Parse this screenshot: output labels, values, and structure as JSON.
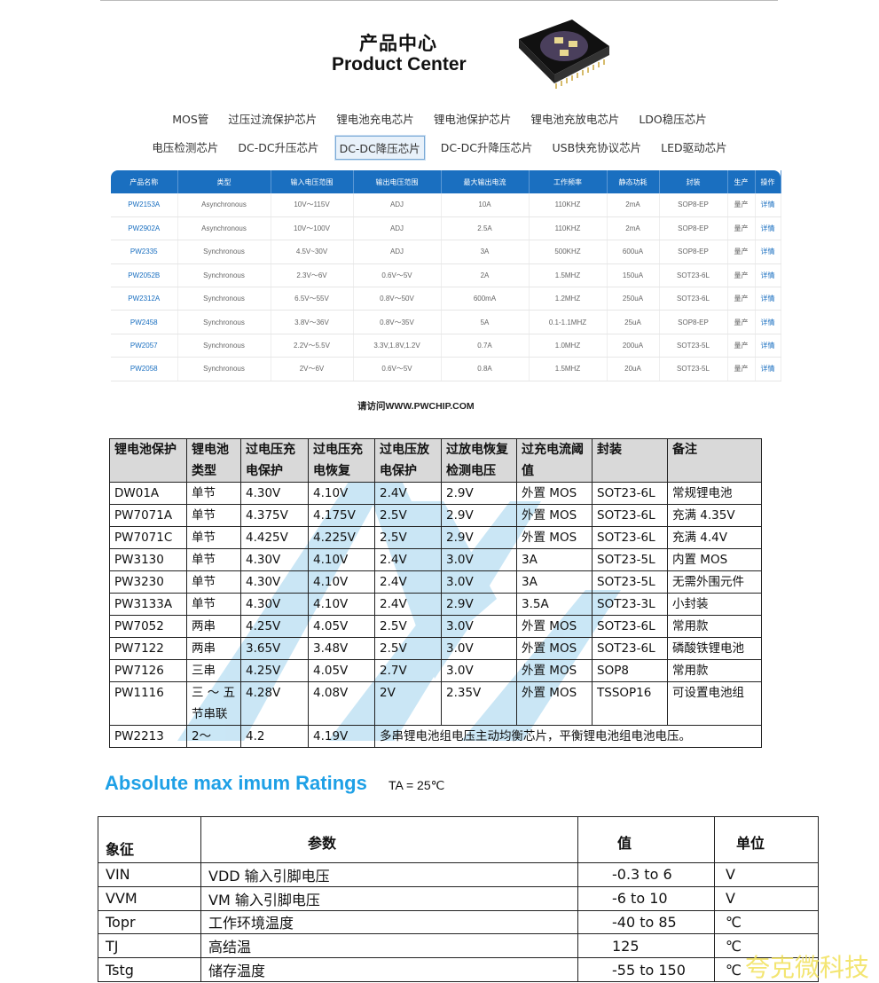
{
  "header": {
    "title_cn": "产品中心",
    "title_en": "Product Center"
  },
  "categories": {
    "row1": [
      "MOS管",
      "过压过流保护芯片",
      "锂电池充电芯片",
      "锂电池保护芯片",
      "锂电池充放电芯片",
      "LDO稳压芯片"
    ],
    "row2": [
      "电压检测芯片",
      "DC-DC升压芯片",
      "DC-DC降压芯片",
      "DC-DC升降压芯片",
      "USB快充协议芯片",
      "LED驱动芯片"
    ],
    "selected": "DC-DC降压芯片"
  },
  "product_table": {
    "headers": [
      "产品名称",
      "类型",
      "输入电压范围",
      "输出电压范围",
      "最大输出电流",
      "工作频率",
      "静态功耗",
      "封装",
      "生产",
      "操作"
    ],
    "rows": [
      [
        "PW2153A",
        "Asynchronous",
        "10V～115V",
        "ADJ",
        "10A",
        "110KHZ",
        "2mA",
        "SOP8-EP",
        "量产",
        "详情"
      ],
      [
        "PW2902A",
        "Asynchronous",
        "10V～100V",
        "ADJ",
        "2.5A",
        "110KHZ",
        "2mA",
        "SOP8-EP",
        "量产",
        "详情"
      ],
      [
        "PW2335",
        "Synchronous",
        "4.5V~30V",
        "ADJ",
        "3A",
        "500KHZ",
        "600uA",
        "SOP8-EP",
        "量产",
        "详情"
      ],
      [
        "PW2052B",
        "Synchronous",
        "2.3V～6V",
        "0.6V～5V",
        "2A",
        "1.5MHZ",
        "150uA",
        "SOT23-6L",
        "量产",
        "详情"
      ],
      [
        "PW2312A",
        "Synchronous",
        "6.5V～55V",
        "0.8V～50V",
        "600mA",
        "1.2MHZ",
        "250uA",
        "SOT23-6L",
        "量产",
        "详情"
      ],
      [
        "PW2458",
        "Synchronous",
        "3.8V～36V",
        "0.8V～35V",
        "5A",
        "0.1-1.1MHZ",
        "25uA",
        "SOP8-EP",
        "量产",
        "详情"
      ],
      [
        "PW2057",
        "Synchronous",
        "2.2V～5.5V",
        "3.3V,1.8V,1.2V",
        "0.7A",
        "1.0MHZ",
        "200uA",
        "SOT23-5L",
        "量产",
        "详情"
      ],
      [
        "PW2058",
        "Synchronous",
        "2V～6V",
        "0.6V～5V",
        "0.8A",
        "1.5MHZ",
        "20uA",
        "SOT23-5L",
        "量产",
        "详情"
      ]
    ],
    "footer": "请访问WWW.PWCHIP.COM"
  },
  "battery_table": {
    "headers": [
      "锂电池保护",
      "锂电池类型",
      "过电压充电保护",
      "过电压充电恢复",
      "过电压放电保护",
      "过放电恢复检测电压",
      "过充电流阈值",
      "封装",
      "备注"
    ],
    "rows": [
      [
        "DW01A",
        "单节",
        "4.30V",
        "4.10V",
        "2.4V",
        "2.9V",
        "外置 MOS",
        "SOT23-6L",
        "常规锂电池"
      ],
      [
        "PW7071A",
        "单节",
        "4.375V",
        "4.175V",
        "2.5V",
        "2.9V",
        "外置 MOS",
        "SOT23-6L",
        "充满 4.35V"
      ],
      [
        "PW7071C",
        "单节",
        "4.425V",
        "4.225V",
        "2.5V",
        "2.9V",
        "外置 MOS",
        "SOT23-6L",
        "充满 4.4V"
      ],
      [
        "PW3130",
        "单节",
        "4.30V",
        "4.10V",
        "2.4V",
        "3.0V",
        "3A",
        "SOT23-5L",
        "内置 MOS"
      ],
      [
        "PW3230",
        "单节",
        "4.30V",
        "4.10V",
        "2.4V",
        "3.0V",
        "3A",
        "SOT23-5L",
        "无需外围元件"
      ],
      [
        "PW3133A",
        "单节",
        "4.30V",
        "4.10V",
        "2.4V",
        "2.9V",
        "3.5A",
        "SOT23-3L",
        "小封装"
      ],
      [
        "PW7052",
        "两串",
        "4.25V",
        "4.05V",
        "2.5V",
        "3.0V",
        "外置 MOS",
        "SOT23-6L",
        "常用款"
      ],
      [
        "PW7122",
        "两串",
        "3.65V",
        "3.48V",
        "2.5V",
        "3.0V",
        "外置 MOS",
        "SOT23-6L",
        "磷酸铁锂电池"
      ],
      [
        "PW7126",
        "三串",
        "4.25V",
        "4.05V",
        "2.7V",
        "3.0V",
        "外置 MOS",
        "SOP8",
        "常用款"
      ],
      [
        "PW1116",
        "三 ～ 五节串联",
        "4.28V",
        "4.08V",
        "2V",
        "2.35V",
        "外置 MOS",
        "TSSOP16",
        "可设置电池组"
      ]
    ],
    "last_row": [
      "PW2213",
      "2～",
      "4.2",
      "4.19V",
      "多串锂电池组电压主动均衡芯片，平衡锂电池组电池电压。"
    ]
  },
  "ratings": {
    "title": "Absolute max imum Ratings",
    "condition": "TA = 25℃",
    "headers": [
      "象征",
      "参数",
      "值",
      "单位"
    ],
    "rows": [
      [
        "VIN",
        "VDD 输入引脚电压",
        "-0.3 to 6",
        "V"
      ],
      [
        "VVM",
        "VM  输入引脚电压",
        "-6 to 10",
        "V"
      ],
      [
        "Topr",
        "工作环境温度",
        "-40 to 85",
        "℃"
      ],
      [
        "TJ",
        "高结温",
        "125",
        "℃"
      ],
      [
        "Tstg",
        "储存温度",
        "-55 to 150",
        "℃"
      ]
    ]
  },
  "watermark_brand": "夸克微科技",
  "colors": {
    "table_header_blue": "#1a6fc0",
    "link_blue": "#1a6fc0",
    "ratings_title": "#1ea0e6",
    "battery_header_bg": "#d9d9d9",
    "brand_watermark": "#f1e15a"
  }
}
